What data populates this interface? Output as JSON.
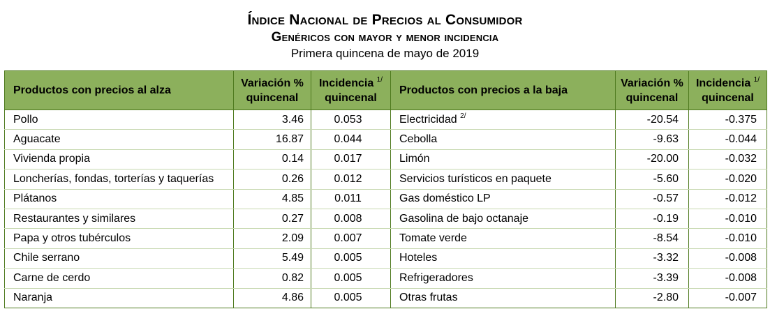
{
  "title_line1": "Índice Nacional de Precios al Consumidor",
  "title_line2": "Genéricos con mayor y menor incidencia",
  "subtitle": "Primera quincena de mayo de 2019",
  "headers": {
    "rise_products": "Productos con precios al alza",
    "variation_line1": "Variación %",
    "variation_line2": "quincenal",
    "incidence_line1": "Incidencia",
    "incidence_note": "1/",
    "incidence_line2": "quincenal",
    "fall_products": "Productos con precios a la baja",
    "variation2_line1": "Variación %",
    "variation2_line2": "quincenal",
    "incidence2_line1": "Incidencia",
    "incidence2_note": "1/",
    "incidence2_line2": "quincenal"
  },
  "rows": [
    {
      "up": "Pollo",
      "up_var": "3.46",
      "up_inc": "0.053",
      "down": "Electricidad",
      "down_note": "2/",
      "down_var": "-20.54",
      "down_inc": "-0.375"
    },
    {
      "up": "Aguacate",
      "up_var": "16.87",
      "up_inc": "0.044",
      "down": "Cebolla",
      "down_note": "",
      "down_var": "-9.63",
      "down_inc": "-0.044"
    },
    {
      "up": "Vivienda propia",
      "up_var": "0.14",
      "up_inc": "0.017",
      "down": "Limón",
      "down_note": "",
      "down_var": "-20.00",
      "down_inc": "-0.032"
    },
    {
      "up": "Loncherías, fondas, torterías y taquerías",
      "up_var": "0.26",
      "up_inc": "0.012",
      "down": "Servicios turísticos en paquete",
      "down_note": "",
      "down_var": "-5.60",
      "down_inc": "-0.020"
    },
    {
      "up": "Plátanos",
      "up_var": "4.85",
      "up_inc": "0.011",
      "down": "Gas doméstico LP",
      "down_note": "",
      "down_var": "-0.57",
      "down_inc": "-0.012"
    },
    {
      "up": "Restaurantes y similares",
      "up_var": "0.27",
      "up_inc": "0.008",
      "down": "Gasolina de bajo octanaje",
      "down_note": "",
      "down_var": "-0.19",
      "down_inc": "-0.010"
    },
    {
      "up": "Papa y otros tubérculos",
      "up_var": "2.09",
      "up_inc": "0.007",
      "down": "Tomate verde",
      "down_note": "",
      "down_var": "-8.54",
      "down_inc": "-0.010"
    },
    {
      "up": "Chile serrano",
      "up_var": "5.49",
      "up_inc": "0.005",
      "down": "Hoteles",
      "down_note": "",
      "down_var": "-3.32",
      "down_inc": "-0.008"
    },
    {
      "up": "Carne de cerdo",
      "up_var": "0.82",
      "up_inc": "0.005",
      "down": "Refrigeradores",
      "down_note": "",
      "down_var": "-3.39",
      "down_inc": "-0.008"
    },
    {
      "up": "Naranja",
      "up_var": "4.86",
      "up_inc": "0.005",
      "down": "Otras frutas",
      "down_note": "",
      "down_var": "-2.80",
      "down_inc": "-0.007"
    }
  ],
  "colors": {
    "header_bg": "#8cb05c",
    "border": "#4f7a1f"
  }
}
